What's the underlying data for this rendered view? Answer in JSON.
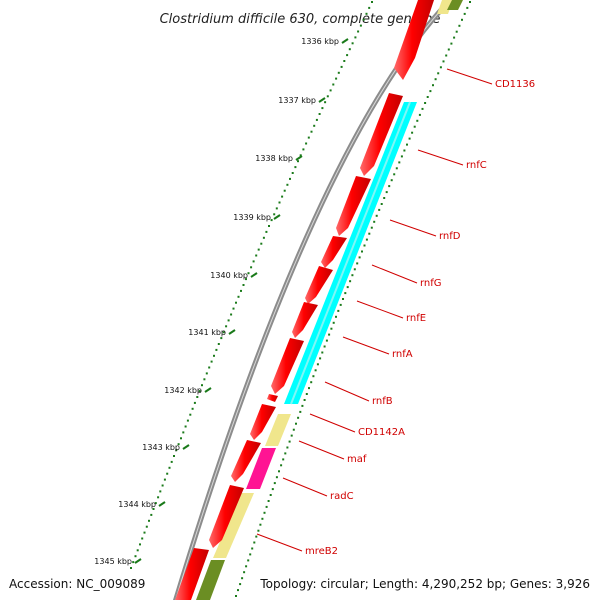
{
  "title": "Clostridium difficile 630, complete genome",
  "accession_label": "Accession: NC_009089",
  "topology_label": "Topology: circular; Length: 4,290,252 bp; Genes: 3,926",
  "axis": {
    "unit": "kbp",
    "ticks": [
      "1336 kbp",
      "1337 kbp",
      "1338 kbp",
      "1339 kbp",
      "1340 kbp",
      "1341 kbp",
      "1342 kbp",
      "1343 kbp",
      "1344 kbp",
      "1345 kbp"
    ]
  },
  "colors": {
    "backbone": "#8a8a8a",
    "forward_gene": "#ff0000",
    "cyan_track": "#00ffff",
    "yellow_track": "#f0e68c",
    "magenta_track": "#ff1493",
    "olive_track": "#6b8e23",
    "label": "#d00000",
    "tick": "#1a7a1a"
  },
  "genes": [
    {
      "name": "CD1136"
    },
    {
      "name": "rnfC"
    },
    {
      "name": "rnfD"
    },
    {
      "name": "rnfG"
    },
    {
      "name": "rnfE"
    },
    {
      "name": "rnfA"
    },
    {
      "name": "rnfB"
    },
    {
      "name": "CD1142A"
    },
    {
      "name": "maf"
    },
    {
      "name": "radC"
    },
    {
      "name": "mreB2"
    }
  ]
}
